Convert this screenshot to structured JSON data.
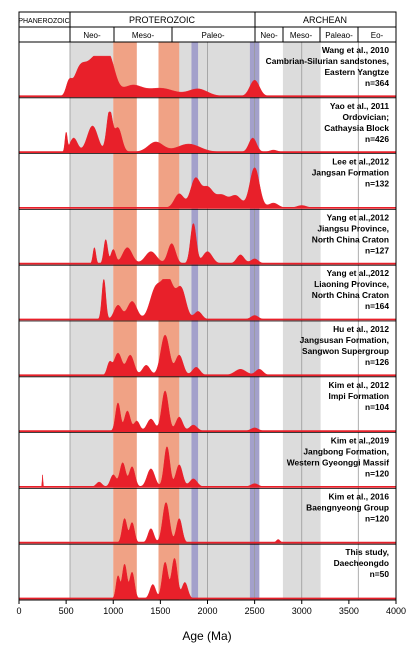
{
  "header": {
    "eons": [
      "PHANEROZOIC",
      "PROTEROZOIC",
      "ARCHEAN"
    ],
    "eras": [
      "Neo-",
      "Meso-",
      "Paleo-",
      "Neo-",
      "Meso-",
      "Paleao-",
      "Eo-"
    ]
  },
  "colors": {
    "curve": "#e8202a",
    "era_grey": "#dcdcdc",
    "salmon": "#f0a285",
    "purple": "#a3a0cb",
    "panel_border": "#000000"
  },
  "chart_data": {
    "type": "area",
    "x_unit": "Ma",
    "xlabel": "Age (Ma)",
    "xlim": [
      0,
      4000
    ],
    "xticks": [
      0,
      500,
      1000,
      1500,
      2000,
      2500,
      3000,
      3500,
      4000
    ],
    "shaded_bands": [
      {
        "from": 541,
        "to": 1000,
        "color": "grey"
      },
      {
        "from": 1600,
        "to": 2500,
        "color": "grey"
      },
      {
        "from": 2800,
        "to": 3200,
        "color": "grey"
      },
      {
        "from": 1000,
        "to": 1250,
        "color": "salmon"
      },
      {
        "from": 1480,
        "to": 1700,
        "color": "salmon"
      },
      {
        "from": 1830,
        "to": 1900,
        "color": "purple"
      },
      {
        "from": 2450,
        "to": 2550,
        "color": "purple"
      }
    ],
    "reference_lines": [
      541,
      2000,
      2500,
      3000,
      3600
    ],
    "series": [
      {
        "label": [
          "Wang et al., 2010",
          "Cambrian-Silurian sandstones,",
          "Eastern Yangtze",
          "n=364"
        ],
        "peaks": [
          [
            530,
            0.3,
            30
          ],
          [
            640,
            0.5,
            60
          ],
          [
            820,
            1.0,
            110
          ],
          [
            960,
            0.6,
            60
          ],
          [
            1200,
            0.25,
            100
          ],
          [
            1500,
            0.2,
            150
          ],
          [
            1900,
            0.18,
            100
          ],
          [
            2500,
            0.4,
            50
          ]
        ]
      },
      {
        "label": [
          "Yao et al., 2011",
          "Ordovician;",
          "Cathaysia Block",
          "n=426"
        ],
        "peaks": [
          [
            500,
            0.45,
            12
          ],
          [
            580,
            0.35,
            40
          ],
          [
            780,
            0.65,
            55
          ],
          [
            960,
            1.0,
            30
          ],
          [
            1050,
            0.6,
            40
          ],
          [
            1450,
            0.25,
            80
          ],
          [
            1800,
            0.2,
            120
          ],
          [
            2480,
            0.35,
            40
          ],
          [
            2700,
            0.05,
            40
          ]
        ]
      },
      {
        "label": [
          "Lee et al.,2012",
          "Jangsan Formation",
          "n=132"
        ],
        "peaks": [
          [
            1700,
            0.35,
            50
          ],
          [
            1870,
            0.7,
            50
          ],
          [
            2000,
            0.5,
            60
          ],
          [
            2150,
            0.3,
            60
          ],
          [
            2300,
            0.3,
            60
          ],
          [
            2500,
            1.0,
            50
          ],
          [
            2700,
            0.12,
            50
          ],
          [
            3000,
            0.06,
            50
          ]
        ]
      },
      {
        "label": [
          "Yang et al.,2012",
          "Jiangsu Province,",
          "North China Craton",
          "n=127"
        ],
        "peaks": [
          [
            800,
            0.4,
            15
          ],
          [
            920,
            0.6,
            20
          ],
          [
            1000,
            0.35,
            25
          ],
          [
            1150,
            0.4,
            50
          ],
          [
            1400,
            0.3,
            60
          ],
          [
            1620,
            0.5,
            40
          ],
          [
            1850,
            1.0,
            30
          ],
          [
            2000,
            0.3,
            50
          ],
          [
            2350,
            0.22,
            40
          ],
          [
            2500,
            0.12,
            40
          ]
        ]
      },
      {
        "label": [
          "Yang et al.,2012",
          "Liaoning Province,",
          "North China Craton",
          "n=164"
        ],
        "peaks": [
          [
            900,
            1.0,
            20
          ],
          [
            1050,
            0.35,
            40
          ],
          [
            1200,
            0.45,
            50
          ],
          [
            1450,
            0.75,
            60
          ],
          [
            1580,
            1.0,
            60
          ],
          [
            1720,
            0.75,
            50
          ],
          [
            1900,
            0.2,
            40
          ],
          [
            2500,
            0.1,
            40
          ]
        ]
      },
      {
        "label": [
          "Hu et al., 2012",
          "Jangsusan Formation,",
          "Sangwon Supergroup",
          "n=126"
        ],
        "peaks": [
          [
            960,
            0.3,
            25
          ],
          [
            1050,
            0.55,
            40
          ],
          [
            1180,
            0.5,
            40
          ],
          [
            1350,
            0.25,
            40
          ],
          [
            1550,
            1.0,
            45
          ],
          [
            1700,
            0.5,
            40
          ],
          [
            1880,
            0.2,
            40
          ],
          [
            2350,
            0.15,
            60
          ],
          [
            2550,
            0.15,
            40
          ]
        ]
      },
      {
        "label": [
          "Kim et al., 2012",
          "Impi Formation",
          "n=104"
        ],
        "peaks": [
          [
            1050,
            0.7,
            25
          ],
          [
            1150,
            0.5,
            30
          ],
          [
            1250,
            0.25,
            30
          ],
          [
            1400,
            0.3,
            40
          ],
          [
            1550,
            1.0,
            35
          ],
          [
            1700,
            0.35,
            35
          ],
          [
            1850,
            0.15,
            40
          ],
          [
            2500,
            0.08,
            40
          ]
        ]
      },
      {
        "label": [
          "Kim et al.,2019",
          "Jangbong Formation,",
          "Western Gyeonggi Massif",
          "n=120"
        ],
        "peaks": [
          [
            250,
            0.3,
            4
          ],
          [
            850,
            0.12,
            30
          ],
          [
            1000,
            0.3,
            30
          ],
          [
            1100,
            0.6,
            30
          ],
          [
            1200,
            0.5,
            30
          ],
          [
            1400,
            0.45,
            40
          ],
          [
            1570,
            1.0,
            30
          ],
          [
            1700,
            0.55,
            35
          ],
          [
            1850,
            0.2,
            40
          ],
          [
            2500,
            0.08,
            40
          ]
        ]
      },
      {
        "label": [
          "Kim et al., 2016",
          "Baengnyeong Group",
          "n=120"
        ],
        "peaks": [
          [
            1120,
            0.6,
            25
          ],
          [
            1200,
            0.5,
            25
          ],
          [
            1400,
            0.35,
            30
          ],
          [
            1560,
            1.0,
            35
          ],
          [
            1700,
            0.6,
            30
          ],
          [
            2750,
            0.08,
            20
          ]
        ]
      },
      {
        "label": [
          "This study,",
          "Daecheongdo",
          "n=50"
        ],
        "peaks": [
          [
            1050,
            0.55,
            20
          ],
          [
            1120,
            0.85,
            25
          ],
          [
            1200,
            0.65,
            25
          ],
          [
            1420,
            0.35,
            30
          ],
          [
            1550,
            0.9,
            30
          ],
          [
            1650,
            1.0,
            30
          ],
          [
            1760,
            0.4,
            30
          ]
        ]
      }
    ]
  }
}
